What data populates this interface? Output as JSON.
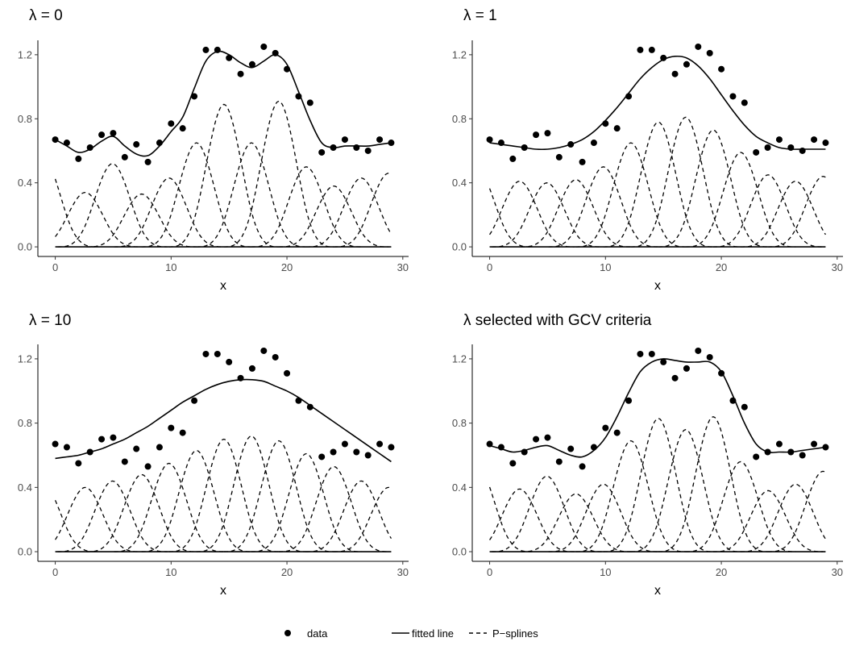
{
  "chart_data": [
    {
      "type": "line",
      "title": "λ = 0",
      "xlabel": "x",
      "ylabel": "",
      "xlim": [
        -1.5,
        30.5
      ],
      "ylim": [
        -0.06,
        1.29
      ],
      "xticks": [
        0,
        10,
        20,
        30
      ],
      "yticks": [
        0.0,
        0.4,
        0.8,
        1.2
      ],
      "ytick_labels": [
        "0.0",
        "0.4",
        "0.8",
        "1.2"
      ],
      "points": {
        "x": [
          0,
          1,
          2,
          3,
          4,
          5,
          6,
          7,
          8,
          9,
          10,
          11,
          12,
          13,
          14,
          15,
          16,
          17,
          18,
          19,
          20,
          21,
          22,
          23,
          24,
          25,
          26,
          27,
          28,
          29
        ],
        "y": [
          0.67,
          0.65,
          0.55,
          0.62,
          0.7,
          0.71,
          0.56,
          0.64,
          0.53,
          0.65,
          0.77,
          0.74,
          0.94,
          1.23,
          1.23,
          1.18,
          1.08,
          1.14,
          1.25,
          1.21,
          1.11,
          0.94,
          0.9,
          0.59,
          0.62,
          0.67,
          0.62,
          0.6,
          0.67,
          0.65
        ]
      },
      "fitted": {
        "x": [
          0,
          1,
          2,
          3,
          4,
          5,
          6,
          7,
          8,
          9,
          10,
          11,
          12,
          13,
          14,
          15,
          16,
          17,
          18,
          19,
          20,
          21,
          22,
          23,
          24,
          25,
          26,
          27,
          28,
          29
        ],
        "y": [
          0.67,
          0.63,
          0.59,
          0.61,
          0.66,
          0.69,
          0.63,
          0.58,
          0.57,
          0.63,
          0.72,
          0.81,
          0.99,
          1.16,
          1.22,
          1.2,
          1.15,
          1.12,
          1.16,
          1.2,
          1.14,
          0.97,
          0.79,
          0.65,
          0.62,
          0.63,
          0.63,
          0.63,
          0.64,
          0.65
        ]
      },
      "basis": [
        {
          "center": -1.12,
          "height": 0.57
        },
        {
          "center": 2.59,
          "height": 0.34
        },
        {
          "center": 4.94,
          "height": 0.52
        },
        {
          "center": 7.45,
          "height": 0.33
        },
        {
          "center": 9.82,
          "height": 0.43
        },
        {
          "center": 12.19,
          "height": 0.65
        },
        {
          "center": 14.56,
          "height": 0.89
        },
        {
          "center": 16.93,
          "height": 0.65
        },
        {
          "center": 19.3,
          "height": 0.91
        },
        {
          "center": 21.67,
          "height": 0.5
        },
        {
          "center": 24.04,
          "height": 0.38
        },
        {
          "center": 26.41,
          "height": 0.43
        },
        {
          "center": 28.78,
          "height": 0.46
        }
      ]
    },
    {
      "type": "line",
      "title": "λ = 1",
      "xlabel": "x",
      "ylabel": "",
      "xlim": [
        -1.5,
        30.5
      ],
      "ylim": [
        -0.06,
        1.29
      ],
      "xticks": [
        0,
        10,
        20,
        30
      ],
      "yticks": [
        0.0,
        0.4,
        0.8,
        1.2
      ],
      "ytick_labels": [
        "0.0",
        "0.4",
        "0.8",
        "1.2"
      ],
      "points": {
        "x": [
          0,
          1,
          2,
          3,
          4,
          5,
          6,
          7,
          8,
          9,
          10,
          11,
          12,
          13,
          14,
          15,
          16,
          17,
          18,
          19,
          20,
          21,
          22,
          23,
          24,
          25,
          26,
          27,
          28,
          29
        ],
        "y": [
          0.67,
          0.65,
          0.55,
          0.62,
          0.7,
          0.71,
          0.56,
          0.64,
          0.53,
          0.65,
          0.77,
          0.74,
          0.94,
          1.23,
          1.23,
          1.18,
          1.08,
          1.14,
          1.25,
          1.21,
          1.11,
          0.94,
          0.9,
          0.59,
          0.62,
          0.67,
          0.62,
          0.6,
          0.67,
          0.65
        ]
      },
      "fitted": {
        "x": [
          0,
          1,
          2,
          3,
          4,
          5,
          6,
          7,
          8,
          9,
          10,
          11,
          12,
          13,
          14,
          15,
          16,
          17,
          18,
          19,
          20,
          21,
          22,
          23,
          24,
          25,
          26,
          27,
          28,
          29
        ],
        "y": [
          0.65,
          0.64,
          0.63,
          0.62,
          0.61,
          0.61,
          0.62,
          0.64,
          0.67,
          0.72,
          0.79,
          0.87,
          0.96,
          1.05,
          1.12,
          1.17,
          1.19,
          1.18,
          1.13,
          1.05,
          0.95,
          0.85,
          0.76,
          0.69,
          0.65,
          0.62,
          0.61,
          0.61,
          0.61,
          0.61
        ]
      },
      "basis": [
        {
          "center": -1.12,
          "height": 0.49
        },
        {
          "center": 2.59,
          "height": 0.41
        },
        {
          "center": 4.94,
          "height": 0.4
        },
        {
          "center": 7.45,
          "height": 0.42
        },
        {
          "center": 9.82,
          "height": 0.5
        },
        {
          "center": 12.19,
          "height": 0.65
        },
        {
          "center": 14.56,
          "height": 0.78
        },
        {
          "center": 16.93,
          "height": 0.81
        },
        {
          "center": 19.3,
          "height": 0.73
        },
        {
          "center": 21.67,
          "height": 0.59
        },
        {
          "center": 24.04,
          "height": 0.45
        },
        {
          "center": 26.41,
          "height": 0.41
        },
        {
          "center": 28.78,
          "height": 0.44
        }
      ]
    },
    {
      "type": "line",
      "title": "λ = 10",
      "xlabel": "x",
      "ylabel": "",
      "xlim": [
        -1.5,
        30.5
      ],
      "ylim": [
        -0.06,
        1.29
      ],
      "xticks": [
        0,
        10,
        20,
        30
      ],
      "yticks": [
        0.0,
        0.4,
        0.8,
        1.2
      ],
      "ytick_labels": [
        "0.0",
        "0.4",
        "0.8",
        "1.2"
      ],
      "points": {
        "x": [
          0,
          1,
          2,
          3,
          4,
          5,
          6,
          7,
          8,
          9,
          10,
          11,
          12,
          13,
          14,
          15,
          16,
          17,
          18,
          19,
          20,
          21,
          22,
          23,
          24,
          25,
          26,
          27,
          28,
          29
        ],
        "y": [
          0.67,
          0.65,
          0.55,
          0.62,
          0.7,
          0.71,
          0.56,
          0.64,
          0.53,
          0.65,
          0.77,
          0.74,
          0.94,
          1.23,
          1.23,
          1.18,
          1.08,
          1.14,
          1.25,
          1.21,
          1.11,
          0.94,
          0.9,
          0.59,
          0.62,
          0.67,
          0.62,
          0.6,
          0.67,
          0.65
        ]
      },
      "fitted": {
        "x": [
          0,
          1,
          2,
          3,
          4,
          5,
          6,
          7,
          8,
          9,
          10,
          11,
          12,
          13,
          14,
          15,
          16,
          17,
          18,
          19,
          20,
          21,
          22,
          23,
          24,
          25,
          26,
          27,
          28,
          29
        ],
        "y": [
          0.58,
          0.59,
          0.6,
          0.62,
          0.64,
          0.67,
          0.7,
          0.74,
          0.78,
          0.83,
          0.88,
          0.93,
          0.97,
          1.01,
          1.04,
          1.06,
          1.07,
          1.07,
          1.06,
          1.03,
          1.0,
          0.96,
          0.91,
          0.86,
          0.81,
          0.76,
          0.71,
          0.66,
          0.61,
          0.56
        ]
      },
      "basis": [
        {
          "center": -1.12,
          "height": 0.43
        },
        {
          "center": 2.59,
          "height": 0.4
        },
        {
          "center": 4.94,
          "height": 0.44
        },
        {
          "center": 7.45,
          "height": 0.48
        },
        {
          "center": 9.82,
          "height": 0.55
        },
        {
          "center": 12.19,
          "height": 0.63
        },
        {
          "center": 14.56,
          "height": 0.7
        },
        {
          "center": 16.93,
          "height": 0.72
        },
        {
          "center": 19.3,
          "height": 0.69
        },
        {
          "center": 21.67,
          "height": 0.61
        },
        {
          "center": 24.04,
          "height": 0.53
        },
        {
          "center": 26.41,
          "height": 0.44
        },
        {
          "center": 28.78,
          "height": 0.4
        }
      ]
    },
    {
      "type": "line",
      "title": "λ  selected with GCV criteria",
      "xlabel": "x",
      "ylabel": "",
      "xlim": [
        -1.5,
        30.5
      ],
      "ylim": [
        -0.06,
        1.29
      ],
      "xticks": [
        0,
        10,
        20,
        30
      ],
      "yticks": [
        0.0,
        0.4,
        0.8,
        1.2
      ],
      "ytick_labels": [
        "0.0",
        "0.4",
        "0.8",
        "1.2"
      ],
      "points": {
        "x": [
          0,
          1,
          2,
          3,
          4,
          5,
          6,
          7,
          8,
          9,
          10,
          11,
          12,
          13,
          14,
          15,
          16,
          17,
          18,
          19,
          20,
          21,
          22,
          23,
          24,
          25,
          26,
          27,
          28,
          29
        ],
        "y": [
          0.67,
          0.65,
          0.55,
          0.62,
          0.7,
          0.71,
          0.56,
          0.64,
          0.53,
          0.65,
          0.77,
          0.74,
          0.94,
          1.23,
          1.23,
          1.18,
          1.08,
          1.14,
          1.25,
          1.21,
          1.11,
          0.94,
          0.9,
          0.59,
          0.62,
          0.67,
          0.62,
          0.6,
          0.67,
          0.65
        ]
      },
      "fitted": {
        "x": [
          0,
          1,
          2,
          3,
          4,
          5,
          6,
          7,
          8,
          9,
          10,
          11,
          12,
          13,
          14,
          15,
          16,
          17,
          18,
          19,
          20,
          21,
          22,
          23,
          24,
          25,
          26,
          27,
          28,
          29
        ],
        "y": [
          0.66,
          0.64,
          0.62,
          0.63,
          0.65,
          0.66,
          0.63,
          0.6,
          0.59,
          0.63,
          0.71,
          0.84,
          0.99,
          1.12,
          1.18,
          1.2,
          1.19,
          1.18,
          1.18,
          1.18,
          1.12,
          0.97,
          0.8,
          0.67,
          0.62,
          0.62,
          0.62,
          0.63,
          0.64,
          0.65
        ]
      },
      "basis": [
        {
          "center": -1.12,
          "height": 0.54
        },
        {
          "center": 2.59,
          "height": 0.39
        },
        {
          "center": 4.94,
          "height": 0.47
        },
        {
          "center": 7.45,
          "height": 0.36
        },
        {
          "center": 9.82,
          "height": 0.42
        },
        {
          "center": 12.19,
          "height": 0.69
        },
        {
          "center": 14.56,
          "height": 0.83
        },
        {
          "center": 16.93,
          "height": 0.76
        },
        {
          "center": 19.3,
          "height": 0.84
        },
        {
          "center": 21.67,
          "height": 0.56
        },
        {
          "center": 24.04,
          "height": 0.38
        },
        {
          "center": 26.41,
          "height": 0.42
        },
        {
          "center": 28.78,
          "height": 0.5
        }
      ]
    }
  ],
  "legend": {
    "position": "bottom",
    "items": [
      {
        "label": "data",
        "symbol": "point"
      },
      {
        "label": "fitted line",
        "symbol": "solid-line"
      },
      {
        "label": "P−splines",
        "symbol": "dashed-line"
      }
    ]
  },
  "colors": {
    "ink": "#000000",
    "tick_text": "#4d4d4d",
    "background": "#ffffff"
  }
}
